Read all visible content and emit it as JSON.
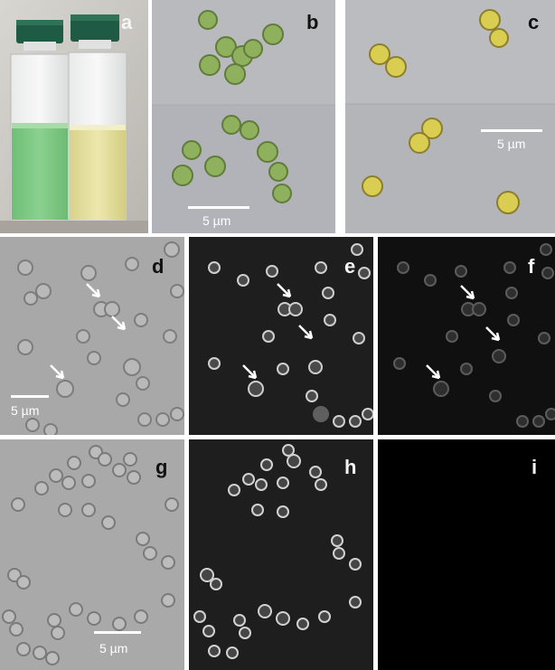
{
  "figure": {
    "panels": [
      {
        "id": "a",
        "label": "a",
        "kind": "photo-vials"
      },
      {
        "id": "b",
        "label": "b",
        "kind": "color-micrograph-green",
        "scale_bar": "5 µm"
      },
      {
        "id": "c",
        "label": "c",
        "kind": "color-micrograph-yellow",
        "scale_bar": "5 µm"
      },
      {
        "id": "d",
        "label": "d",
        "kind": "dic-micrograph",
        "scale_bar": "5 µm",
        "arrows": 4
      },
      {
        "id": "e",
        "label": "e",
        "kind": "fluorescence-bright",
        "arrows": 4
      },
      {
        "id": "f",
        "label": "f",
        "kind": "fluorescence-dim",
        "arrows": 4
      },
      {
        "id": "g",
        "label": "g",
        "kind": "dic-micrograph",
        "scale_bar": "5 µm"
      },
      {
        "id": "h",
        "label": "h",
        "kind": "fluorescence-bright"
      },
      {
        "id": "i",
        "label": "i",
        "kind": "fluorescence-blank"
      }
    ],
    "colors": {
      "green_culture": "#7fcc84",
      "yellow_culture": "#e4df9c",
      "cap": "#1f5a44",
      "micrograph_gray": "#a9a9a9",
      "fluor_background": "#1e1e1e"
    }
  }
}
